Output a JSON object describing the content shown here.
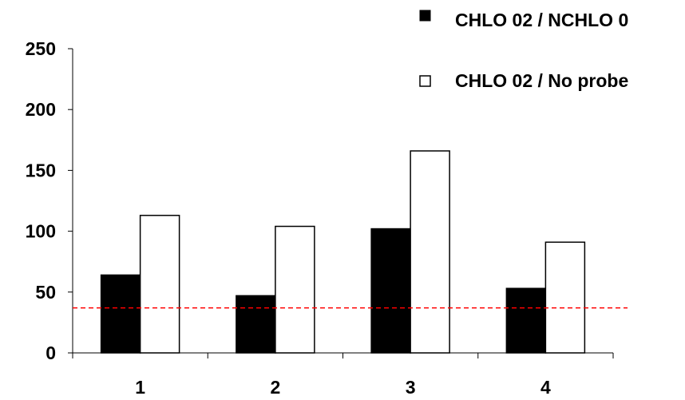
{
  "chart_data": {
    "type": "bar",
    "categories": [
      "1",
      "2",
      "3",
      "4"
    ],
    "series": [
      {
        "name": "CHLO 02 / NCHLO 0",
        "values": [
          64,
          47,
          102,
          53
        ],
        "fill": "#000000",
        "stroke": "#000000"
      },
      {
        "name": "CHLO 02 / No probe",
        "values": [
          113,
          104,
          166,
          91
        ],
        "fill": "#ffffff",
        "stroke": "#000000"
      }
    ],
    "title": "",
    "xlabel": "",
    "ylabel": "",
    "ylim": [
      0,
      250
    ],
    "yticks": [
      0,
      50,
      100,
      150,
      200,
      250
    ],
    "ytick_labels": [
      "0",
      "50",
      "100",
      "150",
      "200",
      "250"
    ],
    "reference_line": {
      "value": 37,
      "color": "#ff0000",
      "style": "dashed"
    },
    "legend": {
      "placement": "top-right",
      "entries": [
        "CHLO 02 / NCHLO 0",
        "CHLO 02 / No probe"
      ]
    },
    "grid": false
  }
}
